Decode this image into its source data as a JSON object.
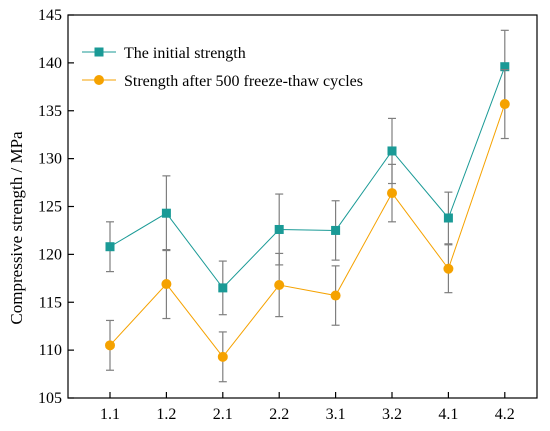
{
  "chart_data": {
    "type": "line",
    "title": "",
    "xlabel": "",
    "ylabel": "Compressive strength / MPa",
    "categories": [
      "1.1",
      "1.2",
      "2.1",
      "2.2",
      "3.1",
      "3.2",
      "4.1",
      "4.2"
    ],
    "ylim": [
      105,
      145
    ],
    "yticks": [
      105,
      110,
      115,
      120,
      125,
      130,
      135,
      140,
      145
    ],
    "grid": false,
    "legend_position": "top-left",
    "series": [
      {
        "name": "The initial strength",
        "marker": "square",
        "color": "#1a9a96",
        "values": [
          120.8,
          124.3,
          116.5,
          122.6,
          122.5,
          130.8,
          123.8,
          139.6
        ],
        "errors": [
          2.6,
          3.9,
          2.8,
          3.7,
          3.1,
          3.4,
          2.7,
          3.8
        ]
      },
      {
        "name": "Strength after 500 freeze-thaw cycles",
        "marker": "circle",
        "color": "#f5a200",
        "values": [
          110.5,
          116.9,
          109.3,
          116.8,
          115.7,
          126.4,
          118.5,
          135.7
        ],
        "errors": [
          2.6,
          3.6,
          2.6,
          3.3,
          3.1,
          3.0,
          2.5,
          3.6
        ]
      }
    ]
  }
}
